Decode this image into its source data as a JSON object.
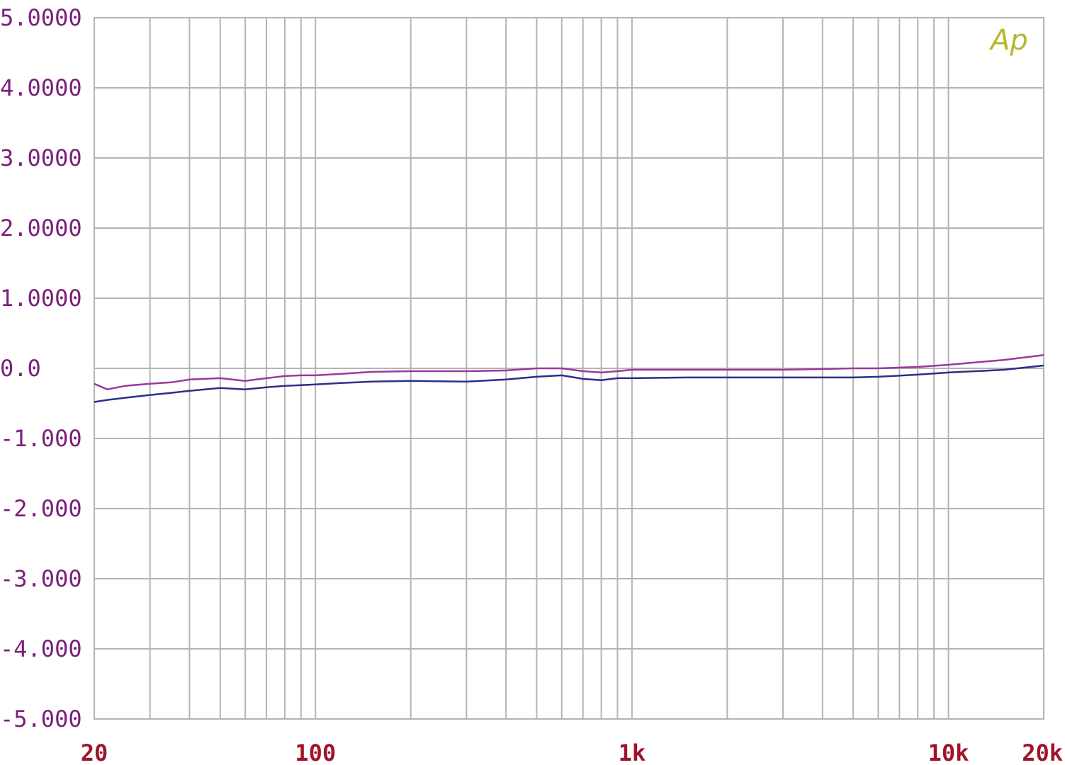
{
  "chart_data": {
    "type": "line",
    "x_scale": "log",
    "xlim": [
      20,
      20000
    ],
    "ylim": [
      -5,
      5
    ],
    "grid": true,
    "y_ticks": [
      {
        "value": 5,
        "label": "5.0000"
      },
      {
        "value": 4,
        "label": "4.0000"
      },
      {
        "value": 3,
        "label": "3.0000"
      },
      {
        "value": 2,
        "label": "2.0000"
      },
      {
        "value": 1,
        "label": "1.0000"
      },
      {
        "value": 0,
        "label": "0.0"
      },
      {
        "value": -1,
        "label": "-1.000"
      },
      {
        "value": -2,
        "label": "-2.000"
      },
      {
        "value": -3,
        "label": "-3.000"
      },
      {
        "value": -4,
        "label": "-4.000"
      },
      {
        "value": -5,
        "label": "-5.000"
      }
    ],
    "x_ticks": [
      {
        "value": 20,
        "label": "20"
      },
      {
        "value": 100,
        "label": "100"
      },
      {
        "value": 1000,
        "label": "1k"
      },
      {
        "value": 10000,
        "label": "10k"
      },
      {
        "value": 20000,
        "label": "20k"
      }
    ],
    "logo": "Ap",
    "colors": {
      "grid": "#b4b4b4",
      "ytick": "#7a1f7a",
      "xtick": "#a0142a",
      "logo": "#b8b830"
    },
    "series": [
      {
        "color": "#9a3a9a",
        "x": [
          20,
          22,
          25,
          30,
          35,
          40,
          50,
          60,
          70,
          80,
          90,
          100,
          120,
          150,
          200,
          300,
          400,
          500,
          600,
          700,
          800,
          900,
          1000,
          1500,
          2000,
          3000,
          4000,
          5000,
          6000,
          8000,
          10000,
          15000,
          20000
        ],
        "y": [
          -0.22,
          -0.3,
          -0.25,
          -0.22,
          -0.2,
          -0.16,
          -0.14,
          -0.18,
          -0.14,
          -0.11,
          -0.1,
          -0.1,
          -0.08,
          -0.05,
          -0.04,
          -0.04,
          -0.03,
          0.0,
          0.0,
          -0.04,
          -0.06,
          -0.04,
          -0.02,
          -0.02,
          -0.02,
          -0.02,
          -0.01,
          0.0,
          0.0,
          0.02,
          0.05,
          0.12,
          0.19
        ]
      },
      {
        "color": "#2e2e8a",
        "x": [
          20,
          22,
          25,
          30,
          35,
          40,
          50,
          60,
          70,
          80,
          90,
          100,
          120,
          150,
          200,
          300,
          400,
          500,
          600,
          700,
          800,
          900,
          1000,
          1500,
          2000,
          3000,
          4000,
          5000,
          6000,
          8000,
          10000,
          15000,
          20000
        ],
        "y": [
          -0.48,
          -0.45,
          -0.42,
          -0.38,
          -0.35,
          -0.32,
          -0.28,
          -0.3,
          -0.27,
          -0.25,
          -0.24,
          -0.23,
          -0.21,
          -0.19,
          -0.18,
          -0.19,
          -0.16,
          -0.12,
          -0.1,
          -0.15,
          -0.17,
          -0.14,
          -0.14,
          -0.13,
          -0.13,
          -0.13,
          -0.13,
          -0.13,
          -0.12,
          -0.09,
          -0.06,
          -0.02,
          0.04
        ]
      }
    ]
  }
}
